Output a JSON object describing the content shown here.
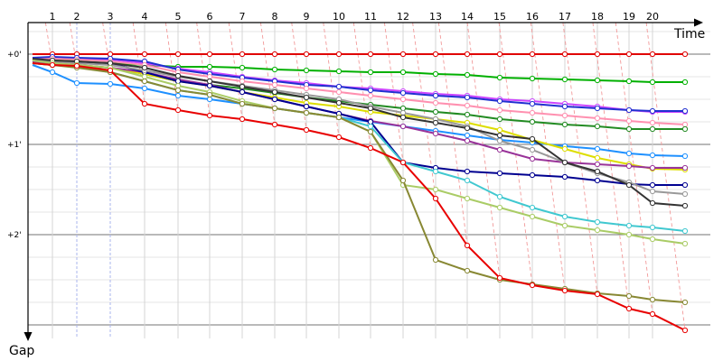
{
  "chart_data": {
    "type": "line",
    "xlabel": "Time",
    "ylabel": "Gap",
    "x_ticks": [
      "1",
      "2",
      "3",
      "4",
      "5",
      "6",
      "7",
      "8",
      "9",
      "10",
      "11",
      "12",
      "13",
      "14",
      "15",
      "16",
      "17",
      "18",
      "19",
      "20"
    ],
    "y_ticks": [
      {
        "value": 0,
        "label": "+0'"
      },
      {
        "value": 1,
        "label": "+1'"
      },
      {
        "value": 2,
        "label": "+2'"
      }
    ],
    "ylim": [
      -0.3,
      3.16
    ],
    "series": [
      {
        "color": "#e00000",
        "values": [
          0.0,
          0.0,
          0.0,
          0.0,
          0.0,
          0.0,
          0.0,
          0.0,
          0.0,
          0.0,
          0.0,
          0.0,
          0.0,
          0.0,
          0.0,
          0.0,
          0.0,
          0.0,
          0.0,
          0.0,
          0.0,
          0.0
        ]
      },
      {
        "color": "#00b000",
        "values": [
          0.08,
          0.06,
          0.08,
          0.1,
          0.12,
          0.14,
          0.14,
          0.15,
          0.17,
          0.18,
          0.19,
          0.2,
          0.2,
          0.22,
          0.23,
          0.26,
          0.27,
          0.28,
          0.29,
          0.3,
          0.31,
          0.31
        ]
      },
      {
        "color": "#cc44ff",
        "values": [
          0.06,
          0.04,
          0.05,
          0.06,
          0.1,
          0.16,
          0.2,
          0.25,
          0.29,
          0.32,
          0.36,
          0.38,
          0.41,
          0.44,
          0.46,
          0.5,
          0.52,
          0.55,
          0.58,
          0.62,
          0.64,
          0.64
        ]
      },
      {
        "color": "#2030d0",
        "values": [
          0.04,
          0.03,
          0.04,
          0.05,
          0.08,
          0.17,
          0.22,
          0.26,
          0.3,
          0.34,
          0.36,
          0.4,
          0.43,
          0.46,
          0.48,
          0.52,
          0.55,
          0.58,
          0.6,
          0.62,
          0.63,
          0.63
        ]
      },
      {
        "color": "#ff90b0",
        "values": [
          0.06,
          0.05,
          0.06,
          0.08,
          0.12,
          0.2,
          0.25,
          0.3,
          0.34,
          0.38,
          0.42,
          0.46,
          0.5,
          0.54,
          0.57,
          0.62,
          0.65,
          0.68,
          0.71,
          0.74,
          0.76,
          0.78
        ]
      },
      {
        "color": "#228b22",
        "values": [
          0.1,
          0.12,
          0.13,
          0.15,
          0.22,
          0.3,
          0.34,
          0.38,
          0.43,
          0.48,
          0.52,
          0.56,
          0.6,
          0.64,
          0.67,
          0.72,
          0.75,
          0.78,
          0.8,
          0.83,
          0.83,
          0.83
        ]
      },
      {
        "color": "#1e90ff",
        "values": [
          0.12,
          0.2,
          0.32,
          0.33,
          0.38,
          0.46,
          0.5,
          0.55,
          0.6,
          0.65,
          0.7,
          0.75,
          0.8,
          0.85,
          0.9,
          0.95,
          0.98,
          1.02,
          1.05,
          1.1,
          1.12,
          1.13
        ]
      },
      {
        "color": "#dddd00",
        "values": [
          0.08,
          0.1,
          0.12,
          0.15,
          0.22,
          0.3,
          0.35,
          0.42,
          0.48,
          0.54,
          0.58,
          0.64,
          0.68,
          0.72,
          0.76,
          0.84,
          0.95,
          1.05,
          1.15,
          1.22,
          1.27,
          1.28
        ]
      },
      {
        "color": "#993399",
        "values": [
          0.08,
          0.1,
          0.12,
          0.15,
          0.2,
          0.28,
          0.34,
          0.42,
          0.5,
          0.58,
          0.66,
          0.74,
          0.8,
          0.88,
          0.96,
          1.06,
          1.16,
          1.2,
          1.22,
          1.24,
          1.26,
          1.26
        ]
      },
      {
        "color": "#000090",
        "values": [
          0.06,
          0.08,
          0.09,
          0.1,
          0.2,
          0.3,
          0.35,
          0.42,
          0.5,
          0.58,
          0.66,
          0.75,
          1.2,
          1.26,
          1.3,
          1.32,
          1.34,
          1.36,
          1.4,
          1.44,
          1.45,
          1.45
        ]
      },
      {
        "color": "#999999",
        "values": [
          0.06,
          0.08,
          0.1,
          0.12,
          0.18,
          0.25,
          0.3,
          0.35,
          0.4,
          0.45,
          0.5,
          0.58,
          0.65,
          0.72,
          0.8,
          0.96,
          1.06,
          1.2,
          1.32,
          1.42,
          1.52,
          1.55
        ]
      },
      {
        "color": "#333333",
        "values": [
          0.05,
          0.07,
          0.08,
          0.1,
          0.15,
          0.24,
          0.3,
          0.36,
          0.42,
          0.48,
          0.54,
          0.6,
          0.7,
          0.76,
          0.82,
          0.9,
          0.94,
          1.2,
          1.3,
          1.45,
          1.65,
          1.68
        ]
      },
      {
        "color": "#40c8d0",
        "values": [
          0.1,
          0.12,
          0.14,
          0.2,
          0.3,
          0.4,
          0.45,
          0.55,
          0.6,
          0.65,
          0.7,
          0.8,
          1.2,
          1.3,
          1.4,
          1.58,
          1.7,
          1.8,
          1.86,
          1.9,
          1.92,
          1.96
        ]
      },
      {
        "color": "#aacc66",
        "values": [
          0.07,
          0.1,
          0.12,
          0.15,
          0.25,
          0.35,
          0.42,
          0.52,
          0.6,
          0.65,
          0.7,
          0.86,
          1.45,
          1.5,
          1.6,
          1.7,
          1.8,
          1.9,
          1.95,
          2.0,
          2.05,
          2.1
        ]
      },
      {
        "color": "#888833",
        "values": [
          0.1,
          0.12,
          0.15,
          0.2,
          0.3,
          0.4,
          0.45,
          0.55,
          0.6,
          0.65,
          0.7,
          0.86,
          1.4,
          2.28,
          2.4,
          2.5,
          2.55,
          2.6,
          2.65,
          2.68,
          2.72,
          2.75
        ]
      },
      {
        "color": "#e80000",
        "values": [
          0.1,
          0.12,
          0.13,
          0.18,
          0.55,
          0.62,
          0.68,
          0.72,
          0.78,
          0.84,
          0.92,
          1.04,
          1.2,
          1.6,
          2.12,
          2.48,
          2.56,
          2.62,
          2.66,
          2.82,
          2.88,
          3.06
        ]
      }
    ]
  }
}
